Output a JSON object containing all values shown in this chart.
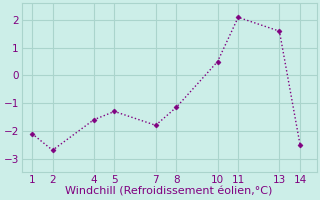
{
  "x": [
    1,
    2,
    4,
    5,
    7,
    8,
    10,
    11,
    13,
    14
  ],
  "y": [
    -2.1,
    -2.7,
    -1.6,
    -1.3,
    -1.8,
    -1.15,
    0.5,
    2.1,
    1.6,
    -2.5
  ],
  "line_color": "#800080",
  "marker": "D",
  "marker_size": 2.5,
  "xlabel": "Windchill (Refroidissement éolien,°C)",
  "xlim": [
    0.5,
    14.8
  ],
  "ylim": [
    -3.5,
    2.6
  ],
  "yticks": [
    -3,
    -2,
    -1,
    0,
    1,
    2
  ],
  "xticks": [
    1,
    2,
    4,
    5,
    7,
    8,
    10,
    11,
    13,
    14
  ],
  "background_color": "#cceee8",
  "grid_color": "#aad4cc",
  "xlabel_fontsize": 8,
  "tick_fontsize": 7.5,
  "line_width": 1.0,
  "line_style": ":"
}
